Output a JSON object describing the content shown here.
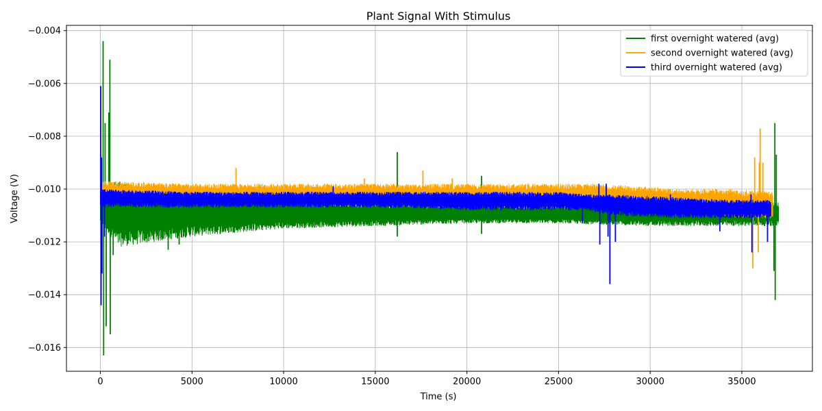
{
  "chart_data": {
    "type": "line",
    "title": "Plant Signal With Stimulus",
    "xlabel": "Time (s)",
    "ylabel": "Voltage (V)",
    "xlim": [
      -1850,
      38850
    ],
    "ylim": [
      -0.0169,
      -0.0038
    ],
    "xticks": [
      0,
      5000,
      10000,
      15000,
      20000,
      25000,
      30000,
      35000
    ],
    "xtick_labels": [
      "0",
      "5000",
      "10000",
      "15000",
      "20000",
      "25000",
      "30000",
      "35000"
    ],
    "yticks": [
      -0.016,
      -0.014,
      -0.012,
      -0.01,
      -0.008,
      -0.006,
      -0.004
    ],
    "ytick_labels": [
      "−0.016",
      "−0.014",
      "−0.012",
      "−0.010",
      "−0.008",
      "−0.006",
      "−0.004"
    ],
    "grid": true,
    "legend_position": "top-right",
    "series": [
      {
        "name": "first overnight watered (avg)",
        "color": "#008000",
        "x_range": [
          0,
          37000
        ],
        "band": [
          {
            "x": 0,
            "upper": -0.0098,
            "lower": -0.0113
          },
          {
            "x": 1000,
            "upper": -0.0097,
            "lower": -0.0122
          },
          {
            "x": 3000,
            "upper": -0.01,
            "lower": -0.012
          },
          {
            "x": 5000,
            "upper": -0.0101,
            "lower": -0.0118
          },
          {
            "x": 10000,
            "upper": -0.0104,
            "lower": -0.0115
          },
          {
            "x": 15000,
            "upper": -0.0105,
            "lower": -0.0114
          },
          {
            "x": 20000,
            "upper": -0.0106,
            "lower": -0.0113
          },
          {
            "x": 25000,
            "upper": -0.0106,
            "lower": -0.0113
          },
          {
            "x": 30000,
            "upper": -0.0106,
            "lower": -0.0114
          },
          {
            "x": 35000,
            "upper": -0.0105,
            "lower": -0.0114
          },
          {
            "x": 37000,
            "upper": -0.0105,
            "lower": -0.0114
          }
        ],
        "spikes": [
          {
            "x": 150,
            "value": -0.0044
          },
          {
            "x": 180,
            "value": -0.0163
          },
          {
            "x": 260,
            "value": -0.0075
          },
          {
            "x": 320,
            "value": -0.0152
          },
          {
            "x": 460,
            "value": -0.0071
          },
          {
            "x": 520,
            "value": -0.0051
          },
          {
            "x": 540,
            "value": -0.0155
          },
          {
            "x": 700,
            "value": -0.0125
          },
          {
            "x": 3700,
            "value": -0.0123
          },
          {
            "x": 4300,
            "value": -0.0121
          },
          {
            "x": 16200,
            "value": -0.0086
          },
          {
            "x": 16200,
            "value": -0.0118
          },
          {
            "x": 20800,
            "value": -0.0095
          },
          {
            "x": 20800,
            "value": -0.0117
          },
          {
            "x": 36750,
            "value": -0.0131
          },
          {
            "x": 36800,
            "value": -0.0075
          },
          {
            "x": 36820,
            "value": -0.0142
          },
          {
            "x": 36880,
            "value": -0.0087
          }
        ]
      },
      {
        "name": "second overnight watered (avg)",
        "color": "#ffa500",
        "x_range": [
          0,
          36700
        ],
        "band": [
          {
            "x": 0,
            "upper": -0.0097,
            "lower": -0.0105
          },
          {
            "x": 5000,
            "upper": -0.0098,
            "lower": -0.0106
          },
          {
            "x": 10000,
            "upper": -0.0098,
            "lower": -0.0106
          },
          {
            "x": 15000,
            "upper": -0.0098,
            "lower": -0.0106
          },
          {
            "x": 20000,
            "upper": -0.0098,
            "lower": -0.0107
          },
          {
            "x": 25000,
            "upper": -0.0098,
            "lower": -0.0107
          },
          {
            "x": 27000,
            "upper": -0.0098,
            "lower": -0.0107
          },
          {
            "x": 29500,
            "upper": -0.0099,
            "lower": -0.0108
          },
          {
            "x": 32000,
            "upper": -0.01,
            "lower": -0.0109
          },
          {
            "x": 35000,
            "upper": -0.01,
            "lower": -0.0111
          },
          {
            "x": 36700,
            "upper": -0.0101,
            "lower": -0.0111
          }
        ],
        "spikes": [
          {
            "x": 7400,
            "value": -0.0092
          },
          {
            "x": 14400,
            "value": -0.0096
          },
          {
            "x": 17600,
            "value": -0.0093
          },
          {
            "x": 19200,
            "value": -0.0096
          },
          {
            "x": 35600,
            "value": -0.013
          },
          {
            "x": 35700,
            "value": -0.0088
          },
          {
            "x": 35900,
            "value": -0.0124
          },
          {
            "x": 35950,
            "value": -0.009
          },
          {
            "x": 36000,
            "value": -0.0077
          },
          {
            "x": 36150,
            "value": -0.009
          }
        ]
      },
      {
        "name": "third overnight watered (avg)",
        "color": "#0000ff",
        "x_range": [
          0,
          36600
        ],
        "band": [
          {
            "x": 0,
            "upper": -0.01,
            "lower": -0.0107
          },
          {
            "x": 5000,
            "upper": -0.0101,
            "lower": -0.0107
          },
          {
            "x": 10000,
            "upper": -0.0101,
            "lower": -0.0107
          },
          {
            "x": 15000,
            "upper": -0.0101,
            "lower": -0.0107
          },
          {
            "x": 20000,
            "upper": -0.0101,
            "lower": -0.0108
          },
          {
            "x": 25000,
            "upper": -0.0101,
            "lower": -0.0108
          },
          {
            "x": 26500,
            "upper": -0.0102,
            "lower": -0.0108
          },
          {
            "x": 28000,
            "upper": -0.0102,
            "lower": -0.011
          },
          {
            "x": 31000,
            "upper": -0.0103,
            "lower": -0.0111
          },
          {
            "x": 34000,
            "upper": -0.0104,
            "lower": -0.0111
          },
          {
            "x": 36600,
            "upper": -0.0104,
            "lower": -0.0111
          }
        ],
        "spikes": [
          {
            "x": 20,
            "value": -0.0061
          },
          {
            "x": 40,
            "value": -0.0144
          },
          {
            "x": 60,
            "value": -0.0088
          },
          {
            "x": 90,
            "value": -0.0132
          },
          {
            "x": 220,
            "value": -0.0118
          },
          {
            "x": 12700,
            "value": -0.0099
          },
          {
            "x": 26300,
            "value": -0.0113
          },
          {
            "x": 27200,
            "value": -0.0098
          },
          {
            "x": 27250,
            "value": -0.0121
          },
          {
            "x": 27600,
            "value": -0.0098
          },
          {
            "x": 27700,
            "value": -0.0118
          },
          {
            "x": 27800,
            "value": -0.0136
          },
          {
            "x": 28100,
            "value": -0.012
          },
          {
            "x": 31100,
            "value": -0.0102
          },
          {
            "x": 33800,
            "value": -0.0116
          },
          {
            "x": 35500,
            "value": -0.0102
          },
          {
            "x": 35550,
            "value": -0.0124
          },
          {
            "x": 36400,
            "value": -0.012
          }
        ]
      }
    ]
  }
}
